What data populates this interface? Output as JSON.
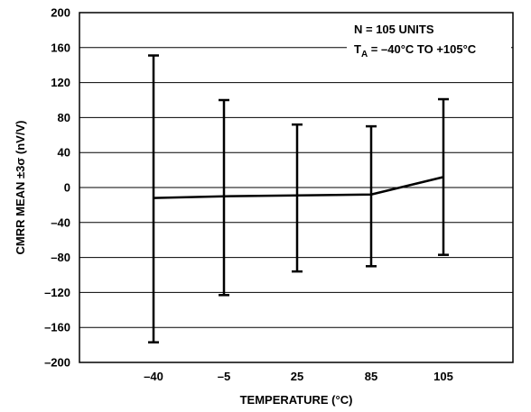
{
  "chart_data": {
    "type": "line",
    "xlabel": "TEMPERATURE (°C)",
    "ylabel": "CMRR MEAN ±3σ (nV/V)",
    "ylim": [
      -200,
      200
    ],
    "yticks": [
      200,
      160,
      120,
      80,
      40,
      0,
      -40,
      -80,
      -120,
      -160,
      -200
    ],
    "grid": true,
    "categories": [
      "–40",
      "–5",
      "25",
      "85",
      "105"
    ],
    "x": [
      -40,
      -5,
      25,
      85,
      105
    ],
    "series": [
      {
        "values": [
          -12,
          -10,
          -9,
          -8,
          12
        ],
        "upper": [
          151,
          100,
          72,
          70,
          101
        ],
        "lower": [
          -177,
          -123,
          -96,
          -90,
          -77
        ]
      }
    ],
    "annotations": {
      "line1": "N = 105 UNITS",
      "t_main": "T",
      "t_sub": "A",
      "t_rest": " = –40°C TO +105°C"
    }
  }
}
